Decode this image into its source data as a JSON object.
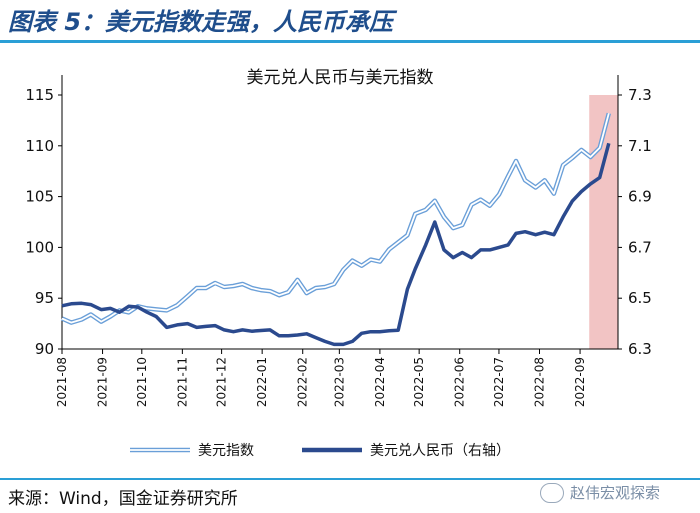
{
  "header": {
    "title": "图表 5：美元指数走强，人民币承压"
  },
  "footer": {
    "source": "来源：Wind，国金证券研究所",
    "watermark": "赵伟宏观探索"
  },
  "colors": {
    "dxy": "#6a9fd8",
    "cny": "#2b4a8e",
    "highlight": "#f2c4c4",
    "rule": "#2a9fd6",
    "title": "#1f4e8c"
  },
  "chart_data": {
    "type": "line",
    "title": "美元兑人民币与美元指数",
    "x_ticks": [
      "2021-08",
      "2021-09",
      "2021-10",
      "2021-11",
      "2021-12",
      "2022-01",
      "2022-02",
      "2022-03",
      "2022-04",
      "2022-05",
      "2022-06",
      "2022-07",
      "2022-08",
      "2022-09"
    ],
    "ylim_left": [
      90,
      115
    ],
    "yticks_left": [
      "90",
      "95",
      "100",
      "105",
      "110",
      "115"
    ],
    "ylim_right": [
      6.3,
      7.3
    ],
    "yticks_right": [
      "6.3",
      "6.5",
      "6.7",
      "6.9",
      "7.1",
      "7.3"
    ],
    "highlight": {
      "from": "2022-09-08",
      "to": "2022-09-30"
    },
    "series": [
      {
        "name": "美元指数",
        "axis": "left",
        "style": "double-line",
        "points": [
          [
            "2021-08-01",
            93.0
          ],
          [
            "2021-08-08",
            92.6
          ],
          [
            "2021-08-16",
            92.9
          ],
          [
            "2021-08-23",
            93.4
          ],
          [
            "2021-08-31",
            92.7
          ],
          [
            "2021-09-07",
            93.2
          ],
          [
            "2021-09-14",
            93.8
          ],
          [
            "2021-09-21",
            93.6
          ],
          [
            "2021-09-28",
            94.2
          ],
          [
            "2021-10-05",
            94.0
          ],
          [
            "2021-10-12",
            93.9
          ],
          [
            "2021-10-20",
            93.8
          ],
          [
            "2021-10-28",
            94.3
          ],
          [
            "2021-11-05",
            95.2
          ],
          [
            "2021-11-12",
            96.0
          ],
          [
            "2021-11-19",
            96.0
          ],
          [
            "2021-11-26",
            96.5
          ],
          [
            "2021-12-03",
            96.1
          ],
          [
            "2021-12-10",
            96.2
          ],
          [
            "2021-12-17",
            96.4
          ],
          [
            "2021-12-24",
            96.0
          ],
          [
            "2021-12-31",
            95.8
          ],
          [
            "2022-01-07",
            95.7
          ],
          [
            "2022-01-14",
            95.3
          ],
          [
            "2022-01-21",
            95.6
          ],
          [
            "2022-01-28",
            96.8
          ],
          [
            "2022-02-04",
            95.5
          ],
          [
            "2022-02-11",
            96.0
          ],
          [
            "2022-02-18",
            96.1
          ],
          [
            "2022-02-25",
            96.4
          ],
          [
            "2022-03-04",
            97.8
          ],
          [
            "2022-03-11",
            98.7
          ],
          [
            "2022-03-18",
            98.2
          ],
          [
            "2022-03-25",
            98.8
          ],
          [
            "2022-04-01",
            98.6
          ],
          [
            "2022-04-08",
            99.8
          ],
          [
            "2022-04-15",
            100.5
          ],
          [
            "2022-04-22",
            101.2
          ],
          [
            "2022-04-28",
            103.3
          ],
          [
            "2022-05-06",
            103.7
          ],
          [
            "2022-05-13",
            104.6
          ],
          [
            "2022-05-20",
            103.0
          ],
          [
            "2022-05-27",
            101.9
          ],
          [
            "2022-06-03",
            102.2
          ],
          [
            "2022-06-10",
            104.2
          ],
          [
            "2022-06-17",
            104.7
          ],
          [
            "2022-06-24",
            104.1
          ],
          [
            "2022-07-01",
            105.2
          ],
          [
            "2022-07-08",
            107.0
          ],
          [
            "2022-07-14",
            108.5
          ],
          [
            "2022-07-21",
            106.6
          ],
          [
            "2022-07-29",
            105.9
          ],
          [
            "2022-08-05",
            106.6
          ],
          [
            "2022-08-12",
            105.3
          ],
          [
            "2022-08-19",
            108.1
          ],
          [
            "2022-08-26",
            108.8
          ],
          [
            "2022-09-02",
            109.6
          ],
          [
            "2022-09-09",
            108.9
          ],
          [
            "2022-09-16",
            109.8
          ],
          [
            "2022-09-23",
            113.2
          ]
        ]
      },
      {
        "name": "美元兑人民币（右轴）",
        "axis": "right",
        "style": "thick",
        "points": [
          [
            "2021-08-01",
            6.47
          ],
          [
            "2021-08-08",
            6.478
          ],
          [
            "2021-08-16",
            6.48
          ],
          [
            "2021-08-23",
            6.475
          ],
          [
            "2021-08-31",
            6.455
          ],
          [
            "2021-09-07",
            6.46
          ],
          [
            "2021-09-14",
            6.445
          ],
          [
            "2021-09-21",
            6.468
          ],
          [
            "2021-09-28",
            6.465
          ],
          [
            "2021-10-05",
            6.445
          ],
          [
            "2021-10-12",
            6.428
          ],
          [
            "2021-10-20",
            6.385
          ],
          [
            "2021-10-28",
            6.395
          ],
          [
            "2021-11-05",
            6.4
          ],
          [
            "2021-11-12",
            6.385
          ],
          [
            "2021-11-19",
            6.389
          ],
          [
            "2021-11-26",
            6.392
          ],
          [
            "2021-12-03",
            6.375
          ],
          [
            "2021-12-10",
            6.368
          ],
          [
            "2021-12-17",
            6.375
          ],
          [
            "2021-12-24",
            6.37
          ],
          [
            "2021-12-31",
            6.373
          ],
          [
            "2022-01-07",
            6.375
          ],
          [
            "2022-01-14",
            6.352
          ],
          [
            "2022-01-21",
            6.352
          ],
          [
            "2022-01-28",
            6.355
          ],
          [
            "2022-02-04",
            6.36
          ],
          [
            "2022-02-11",
            6.345
          ],
          [
            "2022-02-18",
            6.33
          ],
          [
            "2022-02-25",
            6.318
          ],
          [
            "2022-03-04",
            6.318
          ],
          [
            "2022-03-11",
            6.33
          ],
          [
            "2022-03-18",
            6.362
          ],
          [
            "2022-03-25",
            6.368
          ],
          [
            "2022-04-01",
            6.368
          ],
          [
            "2022-04-08",
            6.372
          ],
          [
            "2022-04-15",
            6.374
          ],
          [
            "2022-04-22",
            6.535
          ],
          [
            "2022-04-28",
            6.615
          ],
          [
            "2022-05-06",
            6.71
          ],
          [
            "2022-05-13",
            6.8
          ],
          [
            "2022-05-20",
            6.69
          ],
          [
            "2022-05-27",
            6.66
          ],
          [
            "2022-06-03",
            6.68
          ],
          [
            "2022-06-10",
            6.66
          ],
          [
            "2022-06-17",
            6.69
          ],
          [
            "2022-06-24",
            6.69
          ],
          [
            "2022-07-01",
            6.7
          ],
          [
            "2022-07-08",
            6.71
          ],
          [
            "2022-07-14",
            6.755
          ],
          [
            "2022-07-21",
            6.762
          ],
          [
            "2022-07-29",
            6.75
          ],
          [
            "2022-08-05",
            6.76
          ],
          [
            "2022-08-12",
            6.75
          ],
          [
            "2022-08-19",
            6.82
          ],
          [
            "2022-08-26",
            6.882
          ],
          [
            "2022-09-02",
            6.92
          ],
          [
            "2022-09-09",
            6.95
          ],
          [
            "2022-09-16",
            6.975
          ],
          [
            "2022-09-23",
            7.11
          ]
        ]
      }
    ]
  }
}
